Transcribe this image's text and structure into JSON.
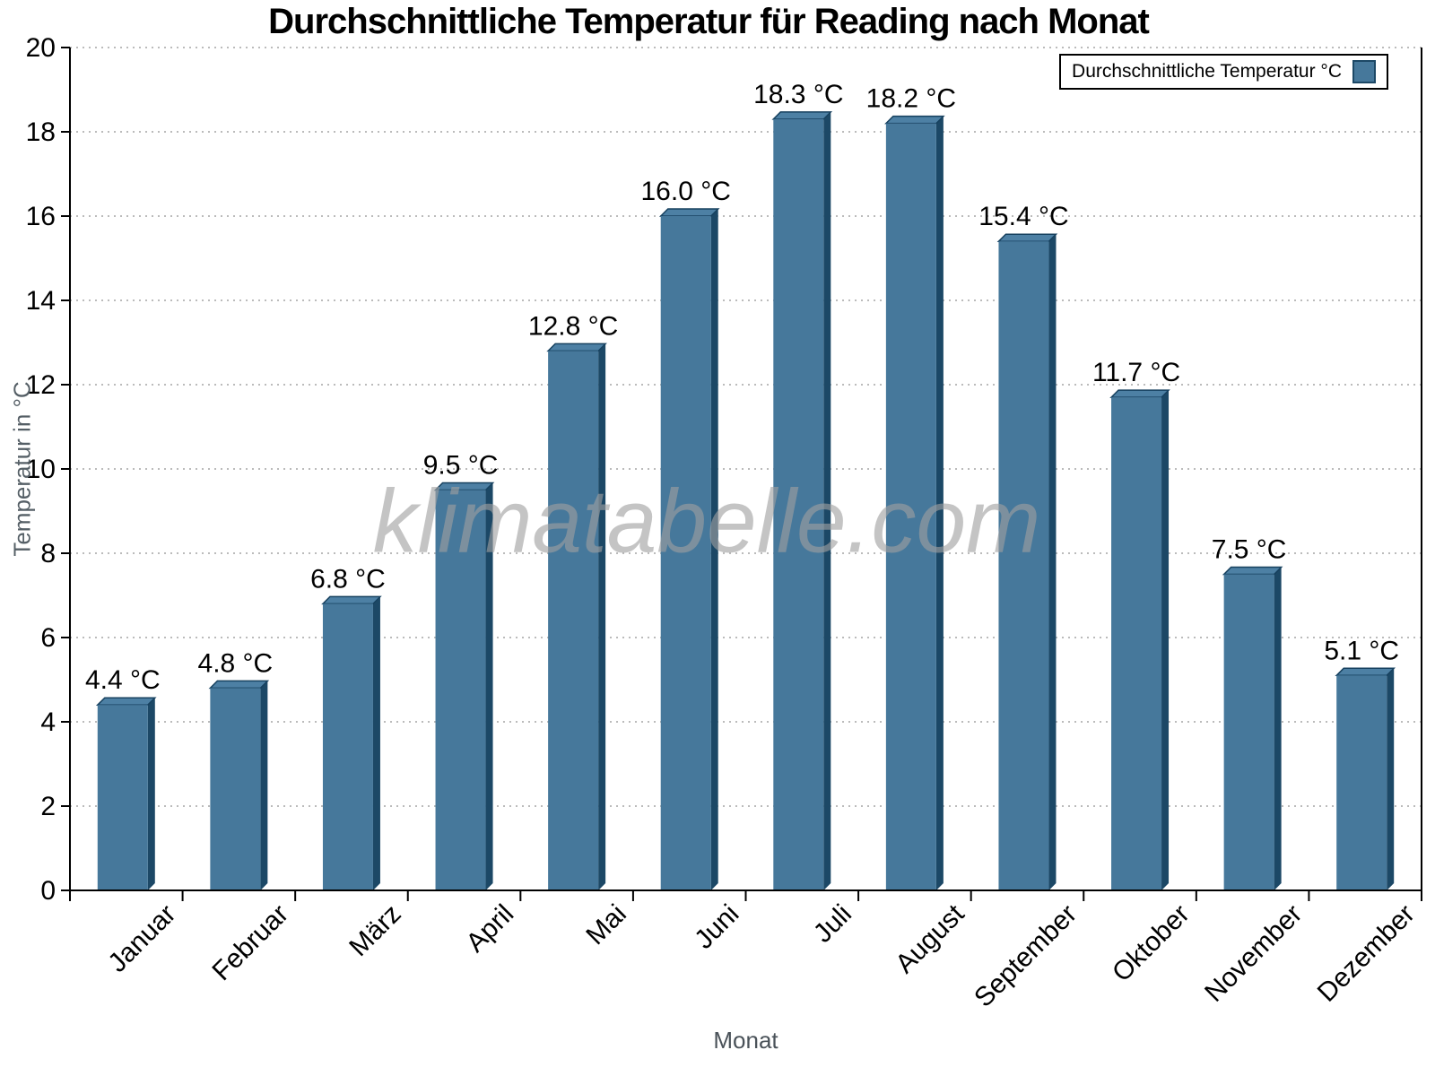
{
  "chart_data": {
    "type": "bar",
    "title": "Durchschnittliche Temperatur für Reading nach Monat",
    "series_name": "Durchschnittliche Temperatur °C",
    "categories": [
      "Januar",
      "Februar",
      "März",
      "April",
      "Mai",
      "Juni",
      "Juli",
      "August",
      "September",
      "Oktober",
      "November",
      "Dezember"
    ],
    "values": [
      4.4,
      4.8,
      6.8,
      9.5,
      12.8,
      16.0,
      18.3,
      18.2,
      15.4,
      11.7,
      7.5,
      5.1
    ],
    "value_suffix": " °C",
    "xlabel": "Monat",
    "ylabel": "Temperatur in °C",
    "ylim": [
      0,
      20
    ],
    "ytick_step": 2,
    "grid": true,
    "legend_position": "top-right",
    "colors": {
      "bar_face": "#46789B",
      "bar_side": "#1C4866",
      "bar_top": "#4D80A4",
      "bar_edge": "#17415F",
      "gridline": "#bbbbbb",
      "axis": "#000000",
      "tick_label": "#000000",
      "axis_title": "#555f66"
    }
  },
  "watermark": "klimatabelle.com"
}
